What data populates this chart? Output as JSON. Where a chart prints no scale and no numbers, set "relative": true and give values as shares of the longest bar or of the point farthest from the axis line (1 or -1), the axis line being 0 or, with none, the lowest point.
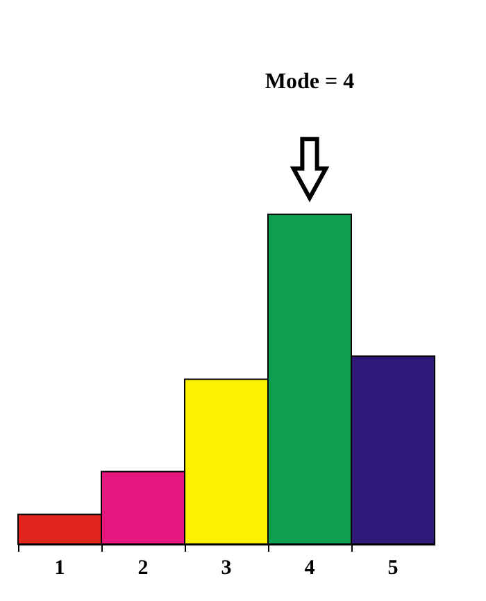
{
  "chart_data": {
    "type": "bar",
    "relative": true,
    "categories": [
      "1",
      "2",
      "3",
      "4",
      "5"
    ],
    "values": [
      0.09,
      0.22,
      0.5,
      1,
      0.57
    ],
    "colors": [
      "#e0251c",
      "#e8177f",
      "#fff200",
      "#0d9e4f",
      "#2e1a78"
    ],
    "annotations": [
      "Mode = 4"
    ],
    "grid": false
  }
}
